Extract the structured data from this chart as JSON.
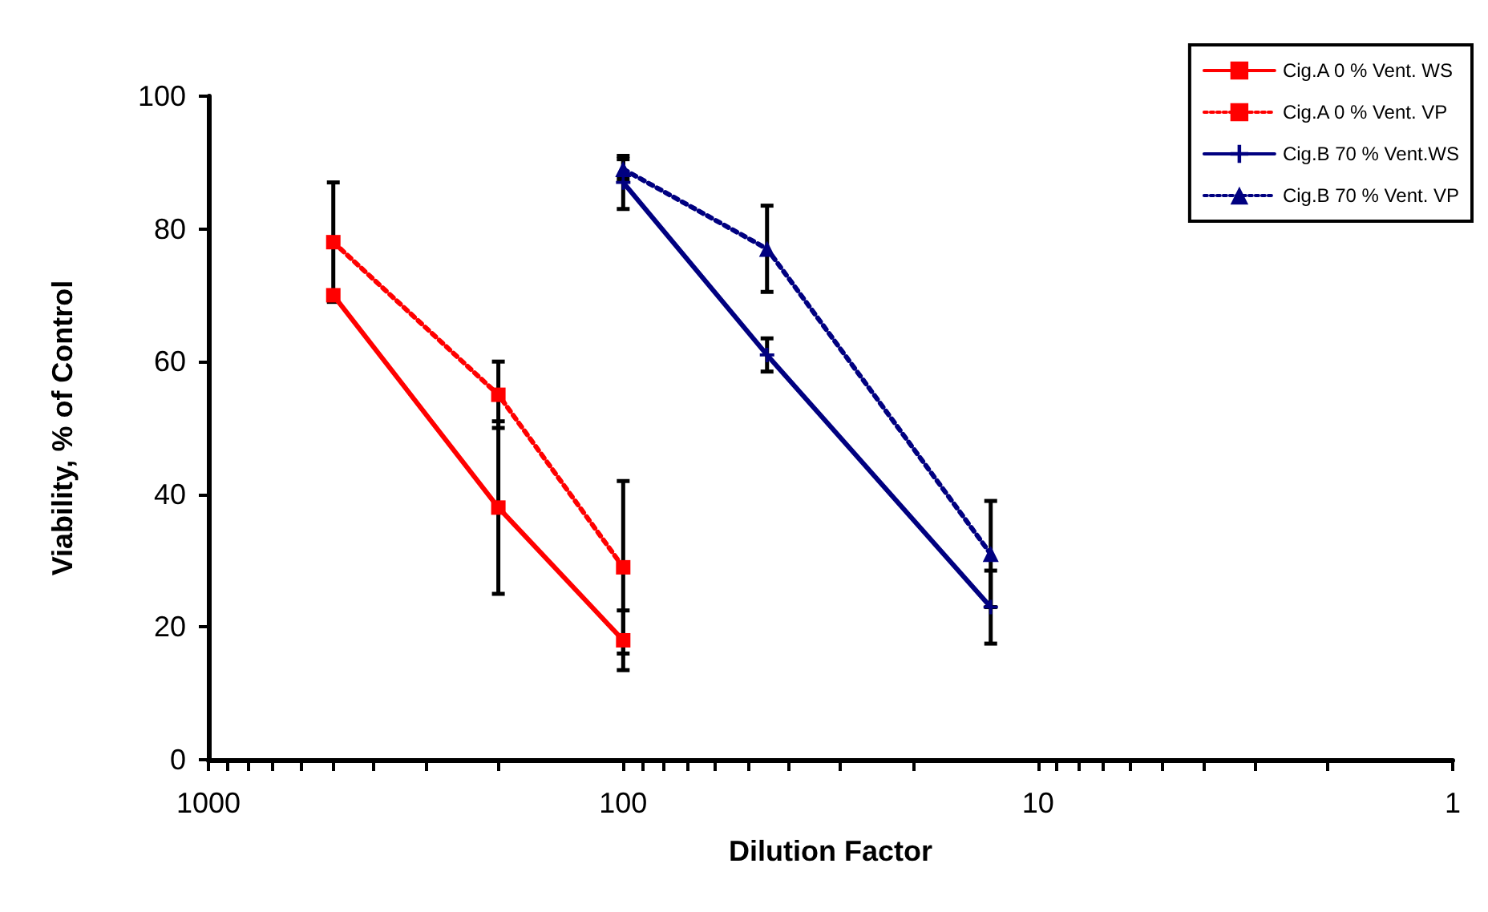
{
  "chart_data": {
    "type": "line",
    "xlabel": "Dilution Factor",
    "ylabel": "Viability, % of Control",
    "log": "x",
    "xlim": [
      1000,
      1
    ],
    "ylim": [
      0,
      100
    ],
    "yticks": [
      0,
      20,
      40,
      60,
      80,
      100
    ],
    "xticks": [
      1000,
      {
        "value": 900,
        "label": null
      },
      {
        "value": 800,
        "label": null
      },
      {
        "value": 700,
        "label": null
      },
      {
        "value": 600,
        "label": null
      },
      {
        "value": 500,
        "label": null
      },
      {
        "value": 400,
        "label": null
      },
      {
        "value": 300,
        "label": null
      },
      {
        "value": 200,
        "label": null
      },
      100,
      {
        "value": 90,
        "label": null
      },
      {
        "value": 80,
        "label": null
      },
      {
        "value": 70,
        "label": null
      },
      {
        "value": 60,
        "label": null
      },
      {
        "value": 50,
        "label": null
      },
      {
        "value": 40,
        "label": null
      },
      {
        "value": 30,
        "label": null
      },
      {
        "value": 20,
        "label": null
      },
      10,
      {
        "value": 9,
        "label": null
      },
      {
        "value": 8,
        "label": null
      },
      {
        "value": 7,
        "label": null
      },
      {
        "value": 6,
        "label": null
      },
      {
        "value": 5,
        "label": null
      },
      {
        "value": 4,
        "label": null
      },
      {
        "value": 3,
        "label": null
      },
      {
        "value": 2,
        "label": null
      },
      1
    ],
    "grid": false,
    "legend": "top right",
    "series": [
      {
        "name": "Cig.A 0 % Vent. WS",
        "color": "#ff0000",
        "x": [
          500,
          200,
          100
        ],
        "values": [
          70,
          38,
          18
        ],
        "errors": [
          null,
          13,
          4.5
        ],
        "marker": "square",
        "line_style": "solid"
      },
      {
        "name": "Cig.A 0 % Vent. VP",
        "color": "#ff0000",
        "x": [
          500,
          200,
          100
        ],
        "values": [
          78,
          55,
          29
        ],
        "errors": [
          9,
          5,
          13
        ],
        "marker": "square",
        "line_style": "dotted"
      },
      {
        "name": "Cig.B 70 % Vent.WS",
        "color": "#000080",
        "x": [
          100,
          45,
          13
        ],
        "values": [
          87,
          61,
          23
        ],
        "errors": [
          4,
          2.5,
          5.5
        ],
        "marker": "cross",
        "line_style": "solid"
      },
      {
        "name": "Cig.B 70 % Vent. VP",
        "color": "#000080",
        "x": [
          100,
          45,
          13
        ],
        "values": [
          89,
          77,
          31
        ],
        "errors": [
          1.5,
          6.5,
          8
        ],
        "marker": "triangle",
        "line_style": "dotted"
      }
    ]
  }
}
